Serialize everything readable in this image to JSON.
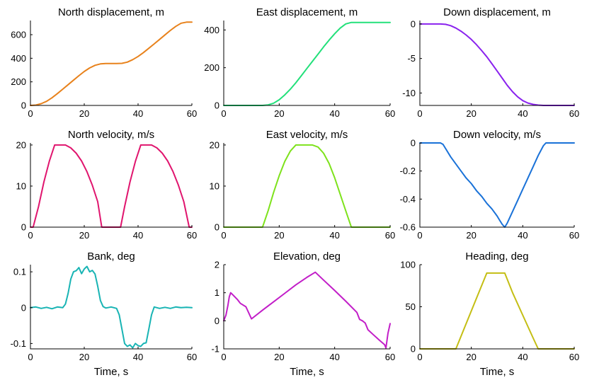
{
  "figure": {
    "xlabel": "Time, s"
  },
  "chart_data": [
    {
      "id": "north-disp",
      "type": "line",
      "title": "North displacement, m",
      "color": "#e8821c",
      "xlim": [
        0,
        60
      ],
      "ylim": [
        0,
        720
      ],
      "xticks": [
        0,
        20,
        40,
        60
      ],
      "yticks": [
        0,
        200,
        400,
        600
      ],
      "x": [
        0,
        2,
        4,
        6,
        8,
        10,
        12,
        14,
        16,
        18,
        20,
        22,
        24,
        26,
        28,
        30,
        32,
        34,
        36,
        38,
        40,
        42,
        44,
        46,
        48,
        50,
        52,
        54,
        56,
        58,
        60
      ],
      "y": [
        0,
        3,
        15,
        35,
        65,
        100,
        138,
        176,
        214,
        252,
        288,
        318,
        340,
        352,
        356,
        356,
        356,
        357,
        367,
        388,
        415,
        448,
        485,
        522,
        560,
        598,
        636,
        670,
        697,
        706,
        706
      ]
    },
    {
      "id": "east-disp",
      "type": "line",
      "title": "East displacement, m",
      "color": "#22e07a",
      "xlim": [
        0,
        60
      ],
      "ylim": [
        0,
        450
      ],
      "xticks": [
        0,
        20,
        40,
        60
      ],
      "yticks": [
        0,
        200,
        400
      ],
      "x": [
        0,
        5,
        10,
        14,
        16,
        18,
        20,
        22,
        24,
        26,
        28,
        30,
        32,
        34,
        36,
        38,
        40,
        42,
        44,
        46,
        50,
        55,
        60
      ],
      "y": [
        0,
        0,
        0,
        0,
        3,
        12,
        30,
        56,
        86,
        120,
        158,
        196,
        234,
        272,
        310,
        346,
        380,
        410,
        432,
        440,
        440,
        440,
        440
      ]
    },
    {
      "id": "down-disp",
      "type": "line",
      "title": "Down displacement, m",
      "color": "#8a22ee",
      "xlim": [
        0,
        60
      ],
      "ylim": [
        -11.8,
        0.5
      ],
      "xticks": [
        0,
        20,
        40,
        60
      ],
      "yticks": [
        0,
        -5,
        -10
      ],
      "ytick_labels": [
        "0",
        "-5",
        "-10"
      ],
      "x": [
        0,
        5,
        8,
        10,
        12,
        14,
        16,
        18,
        20,
        22,
        24,
        26,
        28,
        30,
        32,
        34,
        36,
        38,
        40,
        42,
        44,
        46,
        48,
        50,
        55,
        60
      ],
      "y": [
        0,
        0,
        0,
        -0.05,
        -0.25,
        -0.6,
        -1.05,
        -1.6,
        -2.25,
        -3.0,
        -3.85,
        -4.75,
        -5.75,
        -6.8,
        -7.85,
        -8.9,
        -9.8,
        -10.55,
        -11.1,
        -11.45,
        -11.65,
        -11.75,
        -11.8,
        -11.8,
        -11.8,
        -11.8
      ]
    },
    {
      "id": "north-vel",
      "type": "line",
      "title": "North velocity, m/s",
      "color": "#e0156e",
      "xlim": [
        0,
        60
      ],
      "ylim": [
        0,
        20.5
      ],
      "xticks": [
        0,
        20,
        40,
        60
      ],
      "yticks": [
        0,
        10,
        20
      ],
      "x": [
        0,
        1,
        3,
        5,
        7,
        9,
        11,
        13,
        15,
        17,
        19,
        21,
        23,
        25,
        26.5,
        28,
        30,
        32,
        33.5,
        35,
        37,
        39,
        41,
        43,
        45,
        47,
        49,
        51,
        53,
        55,
        57,
        59,
        60
      ],
      "y": [
        0,
        0,
        5,
        11,
        16,
        20,
        20,
        20,
        19.3,
        18,
        16.1,
        13.5,
        10.2,
        6.2,
        0,
        0,
        0,
        0,
        0,
        5,
        11,
        16,
        20,
        20,
        20,
        19.3,
        18,
        16.1,
        13.5,
        10.2,
        6.2,
        0,
        0
      ]
    },
    {
      "id": "east-vel",
      "type": "line",
      "title": "East velocity, m/s",
      "color": "#7ee21c",
      "xlim": [
        0,
        60
      ],
      "ylim": [
        0,
        20.5
      ],
      "xticks": [
        0,
        20,
        40,
        60
      ],
      "yticks": [
        0,
        10,
        20
      ],
      "x": [
        0,
        5,
        10,
        14,
        16,
        18,
        20,
        22,
        24,
        26,
        28,
        30,
        32,
        34,
        36,
        38,
        40,
        42,
        44,
        46,
        50,
        55,
        60
      ],
      "y": [
        0,
        0,
        0,
        0,
        4,
        8.5,
        12.5,
        16,
        18.5,
        20,
        20,
        20,
        20,
        19.5,
        18,
        15.5,
        12,
        8,
        4,
        0,
        0,
        0,
        0
      ]
    },
    {
      "id": "down-vel",
      "type": "line",
      "title": "Down velocity, m/s",
      "color": "#1a72d8",
      "xlim": [
        0,
        60
      ],
      "ylim": [
        -0.6,
        0
      ],
      "xticks": [
        0,
        20,
        40,
        60
      ],
      "yticks": [
        0,
        -0.2,
        -0.4,
        -0.6
      ],
      "ytick_labels": [
        "0",
        "-0.2",
        "-0.4",
        "-0.6"
      ],
      "x": [
        0,
        4,
        8,
        9,
        10,
        12,
        14,
        16,
        18,
        20,
        22,
        24,
        26,
        28,
        30,
        31,
        32,
        33,
        34,
        36,
        38,
        40,
        42,
        44,
        46,
        48,
        49,
        52,
        56,
        60
      ],
      "y": [
        0,
        0,
        0,
        -0.01,
        -0.04,
        -0.1,
        -0.15,
        -0.2,
        -0.25,
        -0.29,
        -0.34,
        -0.38,
        -0.43,
        -0.47,
        -0.52,
        -0.55,
        -0.58,
        -0.6,
        -0.57,
        -0.49,
        -0.41,
        -0.33,
        -0.25,
        -0.17,
        -0.09,
        -0.02,
        0,
        0,
        0,
        0
      ]
    },
    {
      "id": "bank",
      "type": "line",
      "title": "Bank, deg",
      "color": "#18b4b4",
      "xlim": [
        0,
        60
      ],
      "ylim": [
        -0.115,
        0.12
      ],
      "xticks": [
        0,
        20,
        40,
        60
      ],
      "yticks": [
        0.1,
        0,
        -0.1
      ],
      "ytick_labels": [
        "0.1",
        "0",
        "-0.1"
      ],
      "x": [
        0,
        2,
        4,
        6,
        8,
        10,
        12,
        13,
        14,
        15,
        16,
        17,
        18,
        19,
        20,
        21,
        22,
        23,
        24,
        25,
        26,
        27,
        28,
        30,
        32,
        33,
        34,
        35,
        36,
        37,
        38,
        39,
        40,
        41,
        42,
        43,
        44,
        45,
        46,
        48,
        50,
        52,
        54,
        56,
        58,
        60
      ],
      "y": [
        0,
        0.002,
        -0.002,
        0.001,
        -0.003,
        0.002,
        0,
        0.01,
        0.04,
        0.08,
        0.1,
        0.103,
        0.112,
        0.095,
        0.108,
        0.115,
        0.1,
        0.104,
        0.094,
        0.06,
        0.02,
        0.003,
        -0.001,
        0.002,
        -0.002,
        -0.02,
        -0.06,
        -0.1,
        -0.108,
        -0.104,
        -0.112,
        -0.1,
        -0.106,
        -0.108,
        -0.1,
        -0.098,
        -0.06,
        -0.02,
        0.002,
        -0.002,
        0.001,
        -0.002,
        0.002,
        0,
        0.001,
        0
      ]
    },
    {
      "id": "elevation",
      "type": "line",
      "title": "Elevation, deg",
      "color": "#c21ec8",
      "xlim": [
        0,
        60
      ],
      "ylim": [
        -1,
        2
      ],
      "xticks": [
        0,
        20,
        40,
        60
      ],
      "yticks": [
        2,
        1,
        0,
        -1
      ],
      "x": [
        0,
        0.8,
        1.5,
        2,
        2.5,
        3,
        4,
        5,
        6,
        8,
        10,
        14,
        18,
        22,
        26,
        30,
        33,
        36,
        40,
        44,
        48,
        49,
        50,
        51,
        52,
        54,
        56,
        58,
        58.5,
        59.2,
        60
      ],
      "y": [
        0,
        0.2,
        0.55,
        0.85,
        1.0,
        0.95,
        0.85,
        0.75,
        0.62,
        0.5,
        0.07,
        0.38,
        0.68,
        0.98,
        1.28,
        1.55,
        1.73,
        1.45,
        1.08,
        0.7,
        0.3,
        0.05,
        0,
        -0.08,
        -0.32,
        -0.5,
        -0.68,
        -0.85,
        -0.97,
        -0.45,
        -0.1
      ]
    },
    {
      "id": "heading",
      "type": "line",
      "title": "Heading, deg",
      "color": "#c4be14",
      "xlim": [
        0,
        60
      ],
      "ylim": [
        0,
        100
      ],
      "xticks": [
        0,
        20,
        40,
        60
      ],
      "yticks": [
        0,
        50,
        100
      ],
      "x": [
        0,
        5,
        10,
        14,
        18,
        22,
        26,
        28,
        30,
        32,
        33,
        36,
        40,
        44,
        46,
        50,
        55,
        60
      ],
      "y": [
        0,
        0,
        0,
        0,
        30,
        60,
        90,
        90,
        90,
        90,
        90,
        67,
        40,
        13,
        0,
        0,
        0,
        0
      ]
    }
  ]
}
